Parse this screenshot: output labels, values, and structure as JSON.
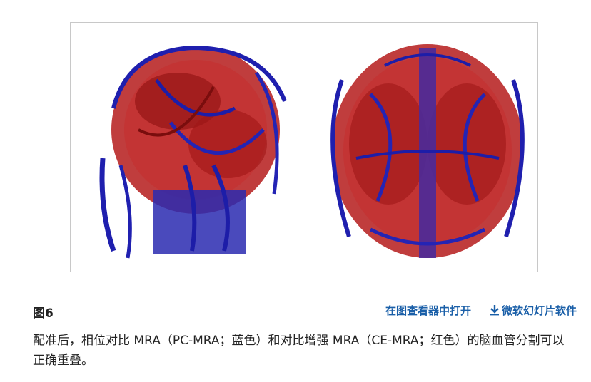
{
  "figure": {
    "label": "图6",
    "caption": "配准后，相位对比 MRA（PC-MRA；蓝色）和对比增强 MRA（CE-MRA；红色）的脑血管分割可以正确重叠。",
    "colors": {
      "pc_mra": "#1f1fae",
      "ce_mra": "#b01818"
    }
  },
  "actions": {
    "open_viewer": "在图查看器中打开",
    "download_ppt": "微软幻灯片软件"
  },
  "icons": {
    "download": "download-icon"
  }
}
